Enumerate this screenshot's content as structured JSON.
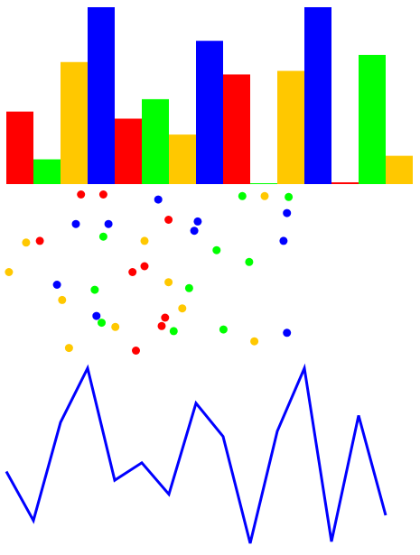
{
  "colors": {
    "red": "#ff0000",
    "green": "#00ff00",
    "blue": "#0000ff",
    "yellow": "#ffc800",
    "background": "#ffffff"
  },
  "chart_data": [
    {
      "type": "bar",
      "ylim": [
        0,
        100
      ],
      "categories": [
        "1",
        "2",
        "3",
        "4",
        "5",
        "6",
        "7",
        "8",
        "9",
        "10",
        "11",
        "12",
        "13",
        "14",
        "15"
      ],
      "values": [
        41,
        14,
        69,
        100,
        37,
        48,
        28,
        81,
        62,
        0.5,
        64,
        100,
        1,
        73,
        16
      ],
      "bar_colors": [
        "red",
        "green",
        "yellow",
        "blue",
        "red",
        "green",
        "yellow",
        "blue",
        "red",
        "green",
        "yellow",
        "blue",
        "red",
        "green",
        "yellow"
      ]
    },
    {
      "type": "scatter",
      "xlim": [
        0,
        100
      ],
      "ylim": [
        0,
        100
      ],
      "points": [
        {
          "x": 21.5,
          "y": 96,
          "color": "red"
        },
        {
          "x": 28,
          "y": 96,
          "color": "red"
        },
        {
          "x": 44,
          "y": 93,
          "color": "blue"
        },
        {
          "x": 68.5,
          "y": 95,
          "color": "green"
        },
        {
          "x": 75,
          "y": 95,
          "color": "yellow"
        },
        {
          "x": 82,
          "y": 94.5,
          "color": "green"
        },
        {
          "x": 81.5,
          "y": 85,
          "color": "blue"
        },
        {
          "x": 20,
          "y": 78.5,
          "color": "blue"
        },
        {
          "x": 29.5,
          "y": 78.5,
          "color": "blue"
        },
        {
          "x": 47,
          "y": 81,
          "color": "red"
        },
        {
          "x": 55.5,
          "y": 80,
          "color": "blue"
        },
        {
          "x": 54.5,
          "y": 74.5,
          "color": "blue"
        },
        {
          "x": 28,
          "y": 71,
          "color": "green"
        },
        {
          "x": 5.5,
          "y": 67.5,
          "color": "yellow"
        },
        {
          "x": 9.5,
          "y": 68.5,
          "color": "red"
        },
        {
          "x": 40,
          "y": 68.5,
          "color": "yellow"
        },
        {
          "x": 61,
          "y": 63,
          "color": "green"
        },
        {
          "x": 80.5,
          "y": 68.5,
          "color": "blue"
        },
        {
          "x": 0.5,
          "y": 50,
          "color": "yellow"
        },
        {
          "x": 36.5,
          "y": 50,
          "color": "red"
        },
        {
          "x": 40,
          "y": 53.5,
          "color": "red"
        },
        {
          "x": 70.5,
          "y": 56,
          "color": "green"
        },
        {
          "x": 14.5,
          "y": 42.5,
          "color": "blue"
        },
        {
          "x": 47,
          "y": 44,
          "color": "yellow"
        },
        {
          "x": 16,
          "y": 33.5,
          "color": "yellow"
        },
        {
          "x": 25.5,
          "y": 39.5,
          "color": "green"
        },
        {
          "x": 53,
          "y": 40.5,
          "color": "green"
        },
        {
          "x": 51,
          "y": 28.5,
          "color": "yellow"
        },
        {
          "x": 26,
          "y": 24,
          "color": "blue"
        },
        {
          "x": 27.5,
          "y": 20,
          "color": "green"
        },
        {
          "x": 31.5,
          "y": 17.5,
          "color": "yellow"
        },
        {
          "x": 46,
          "y": 23,
          "color": "red"
        },
        {
          "x": 45,
          "y": 18,
          "color": "red"
        },
        {
          "x": 48.5,
          "y": 15,
          "color": "green"
        },
        {
          "x": 63,
          "y": 16,
          "color": "green"
        },
        {
          "x": 18,
          "y": 5,
          "color": "yellow"
        },
        {
          "x": 37.5,
          "y": 3.5,
          "color": "red"
        },
        {
          "x": 72,
          "y": 9,
          "color": "yellow"
        },
        {
          "x": 81.5,
          "y": 14,
          "color": "blue"
        }
      ]
    },
    {
      "type": "line",
      "x": [
        1,
        2,
        3,
        4,
        5,
        6,
        7,
        8,
        9,
        10,
        11,
        12,
        13,
        14,
        15
      ],
      "ylim": [
        0,
        100
      ],
      "series": [
        {
          "color": "blue",
          "values": [
            41,
            13,
            69,
            100,
            36,
            46,
            28,
            80,
            61,
            0,
            64,
            100,
            1,
            73,
            16
          ]
        }
      ]
    }
  ]
}
